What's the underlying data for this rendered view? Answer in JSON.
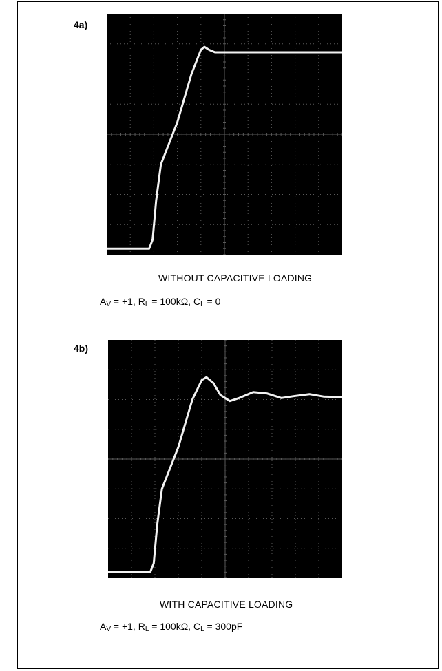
{
  "figures": [
    {
      "label": "4a)",
      "caption": "WITHOUT CAPACITIVE LOADING",
      "params": {
        "av_sym": "A",
        "av_sub": "V",
        "av_val": " = +1, ",
        "rl_sym": "R",
        "rl_sub": "L",
        "rl_val": " = 100kΩ, ",
        "cl_sym": "C",
        "cl_sub": "L",
        "cl_val": " = 0"
      }
    },
    {
      "label": "4b)",
      "caption": "WITH CAPACITIVE LOADING",
      "params": {
        "av_sym": "A",
        "av_sub": "V",
        "av_val": " = +1, ",
        "rl_sym": "R",
        "rl_sub": "L",
        "rl_val": " = 100kΩ, ",
        "cl_sym": "C",
        "cl_sub": "L",
        "cl_val": " = 300pF"
      }
    }
  ],
  "colors": {
    "screen": "#000000",
    "grid": "#5a5a5a",
    "trace": "#f2f2f2"
  },
  "chart_data": [
    {
      "type": "line",
      "grid": true,
      "xlim": [
        0,
        10
      ],
      "ylim": [
        0,
        8
      ],
      "series": [
        {
          "x": [
            0,
            1.8,
            1.95,
            2.1,
            2.3,
            3.0,
            3.6,
            4.0,
            4.15,
            4.35,
            4.6,
            5.0,
            10
          ],
          "y": [
            0.2,
            0.2,
            0.5,
            1.8,
            3.0,
            4.4,
            6.0,
            6.8,
            6.9,
            6.8,
            6.72,
            6.72,
            6.72
          ]
        }
      ]
    },
    {
      "type": "line",
      "grid": true,
      "xlim": [
        0,
        10
      ],
      "ylim": [
        0,
        8
      ],
      "series": [
        {
          "x": [
            0,
            1.8,
            1.95,
            2.1,
            2.3,
            3.0,
            3.6,
            4.0,
            4.2,
            4.5,
            4.8,
            5.2,
            5.6,
            6.2,
            6.8,
            7.4,
            8.0,
            8.6,
            9.2,
            10
          ],
          "y": [
            0.2,
            0.2,
            0.5,
            1.8,
            3.0,
            4.4,
            6.0,
            6.65,
            6.75,
            6.55,
            6.15,
            5.95,
            6.05,
            6.25,
            6.2,
            6.05,
            6.12,
            6.18,
            6.1,
            6.08
          ]
        }
      ]
    }
  ]
}
